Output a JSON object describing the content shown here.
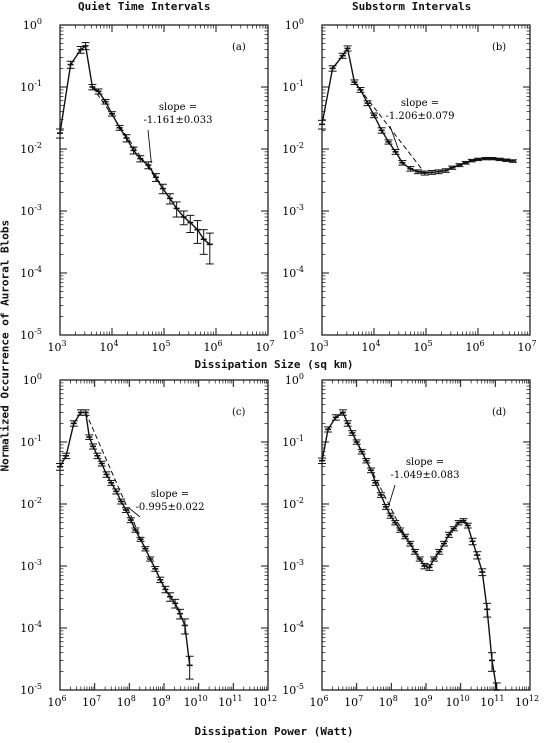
{
  "figure": {
    "col_title_left": "Quiet Time Intervals",
    "col_title_right": "Substorm Intervals",
    "ylabel": "Normalized Occurrence of Auroral Blobs",
    "xlabel_top": "Dissipation Size (sq km)",
    "xlabel_bottom": "Dissipation Power (Watt)"
  },
  "chart_data": [
    {
      "type": "line",
      "panel": "(a)",
      "xscale": "log",
      "yscale": "log",
      "xlim": [
        1000,
        10000000
      ],
      "ylim": [
        1e-05,
        1
      ],
      "annotation": "slope =\n-1.161±0.033",
      "series": [
        {
          "x": [
            1000,
            1600,
            2500,
            3100,
            4200,
            5500,
            7500,
            10000,
            14000,
            19000,
            26000,
            35000,
            50000,
            70000,
            95000,
            130000,
            175000,
            240000,
            320000,
            440000,
            580000,
            760000
          ],
          "y": [
            0.018,
            0.23,
            0.4,
            0.46,
            0.1,
            0.085,
            0.058,
            0.037,
            0.022,
            0.015,
            0.0095,
            0.007,
            0.0055,
            0.0035,
            0.0023,
            0.0016,
            0.0011,
            0.0008,
            0.00065,
            0.0005,
            0.00035,
            0.00029
          ],
          "err": [
            0.003,
            0.03,
            0.05,
            0.06,
            0.01,
            0.008,
            0.005,
            0.003,
            0.002,
            0.002,
            0.0012,
            0.0008,
            0.0007,
            0.0005,
            0.0004,
            0.0003,
            0.0003,
            0.0002,
            0.0002,
            0.0002,
            0.00015,
            0.00015
          ]
        }
      ]
    },
    {
      "type": "line",
      "panel": "(b)",
      "xscale": "log",
      "yscale": "log",
      "xlim": [
        1000,
        10000000
      ],
      "ylim": [
        1e-05,
        1
      ],
      "annotation": "slope =\n-1.206±0.079",
      "series": [
        {
          "x": [
            1000,
            1600,
            2500,
            3100,
            4200,
            5500,
            7500,
            10000,
            14000,
            19000,
            26000,
            35000,
            50000,
            70000,
            95000,
            130000,
            175000,
            240000,
            320000,
            440000,
            580000,
            760000,
            1000000,
            1400000,
            1900000,
            2600000,
            3500000,
            4700000
          ],
          "y": [
            0.025,
            0.2,
            0.32,
            0.42,
            0.12,
            0.09,
            0.055,
            0.035,
            0.02,
            0.013,
            0.009,
            0.006,
            0.0048,
            0.0043,
            0.0041,
            0.0042,
            0.0043,
            0.0045,
            0.005,
            0.0055,
            0.006,
            0.0065,
            0.0068,
            0.007,
            0.007,
            0.0068,
            0.0066,
            0.0064
          ],
          "err": [
            0.004,
            0.02,
            0.03,
            0.04,
            0.01,
            0.008,
            0.005,
            0.003,
            0.002,
            0.001,
            0.0008,
            0.0005,
            0.0004,
            0.0003,
            0.0003,
            0.0003,
            0.0003,
            0.0003,
            0.0003,
            0.0003,
            0.0003,
            0.0003,
            0.0003,
            0.0003,
            0.0003,
            0.0003,
            0.0003,
            0.0003
          ]
        }
      ]
    },
    {
      "type": "line",
      "panel": "(c)",
      "xscale": "log",
      "yscale": "log",
      "xlim": [
        1000000,
        1000000000000
      ],
      "ylim": [
        1e-05,
        1
      ],
      "annotation": "slope =\n-0.995±0.022",
      "series": [
        {
          "x": [
            1000000,
            1500000,
            2500000,
            4000000,
            5500000,
            7000000,
            9000000,
            12000000,
            16000000,
            22000000,
            30000000,
            42000000,
            58000000,
            80000000,
            110000000,
            150000000,
            210000000,
            290000000,
            400000000,
            560000000,
            780000000,
            1100000000,
            1500000000,
            2100000000,
            2900000000,
            4000000000,
            5500000000
          ],
          "y": [
            0.04,
            0.06,
            0.2,
            0.3,
            0.3,
            0.12,
            0.085,
            0.06,
            0.045,
            0.03,
            0.022,
            0.016,
            0.011,
            0.008,
            0.0055,
            0.0038,
            0.0027,
            0.0019,
            0.0013,
            0.0009,
            0.0006,
            0.00042,
            0.00032,
            0.00025,
            0.00017,
            0.00011,
            2.5e-05
          ],
          "err": [
            0.005,
            0.006,
            0.02,
            0.03,
            0.03,
            0.01,
            0.008,
            0.006,
            0.004,
            0.003,
            0.002,
            0.0015,
            0.001,
            0.0007,
            0.0005,
            0.0003,
            0.0002,
            0.00015,
            0.0001,
            8e-05,
            6e-05,
            5e-05,
            5e-05,
            4e-05,
            3e-05,
            3e-05,
            1e-05
          ]
        }
      ]
    },
    {
      "type": "line",
      "panel": "(d)",
      "xscale": "log",
      "yscale": "log",
      "xlim": [
        1000000,
        1000000000000
      ],
      "ylim": [
        1e-05,
        1
      ],
      "annotation": "slope =\n-1.049±0.083",
      "series": [
        {
          "x": [
            1000000,
            1500000,
            2500000,
            4000000,
            5500000,
            7500000,
            10000000,
            14000000,
            19000000,
            26000000,
            35000000,
            50000000,
            70000000,
            95000000,
            130000000,
            180000000,
            250000000,
            350000000,
            480000000,
            660000000,
            900000000,
            1250000000,
            1700000000,
            2400000000,
            3300000000,
            4600000000,
            6300000000,
            8700000000,
            12000000000,
            16000000000,
            22000000000,
            30000000000,
            42000000000,
            58000000000,
            80000000000,
            110000000000
          ],
          "y": [
            0.05,
            0.16,
            0.25,
            0.3,
            0.2,
            0.14,
            0.1,
            0.07,
            0.05,
            0.035,
            0.022,
            0.014,
            0.009,
            0.0065,
            0.005,
            0.0038,
            0.003,
            0.0023,
            0.0017,
            0.0013,
            0.001,
            0.00095,
            0.0013,
            0.0017,
            0.0023,
            0.0032,
            0.004,
            0.005,
            0.0054,
            0.0045,
            0.0025,
            0.0015,
            0.0008,
            0.0002,
            3e-05,
            1e-05
          ],
          "err": [
            0.005,
            0.015,
            0.025,
            0.03,
            0.02,
            0.012,
            0.008,
            0.006,
            0.004,
            0.003,
            0.002,
            0.0012,
            0.0008,
            0.0006,
            0.0004,
            0.0003,
            0.00025,
            0.0002,
            0.00015,
            0.0001,
            0.0001,
            0.0001,
            0.0001,
            0.00015,
            0.0002,
            0.0003,
            0.0003,
            0.0004,
            0.0004,
            0.0004,
            0.0003,
            0.0002,
            0.0001,
            5e-05,
            1e-05,
            3e-06
          ]
        }
      ]
    }
  ]
}
